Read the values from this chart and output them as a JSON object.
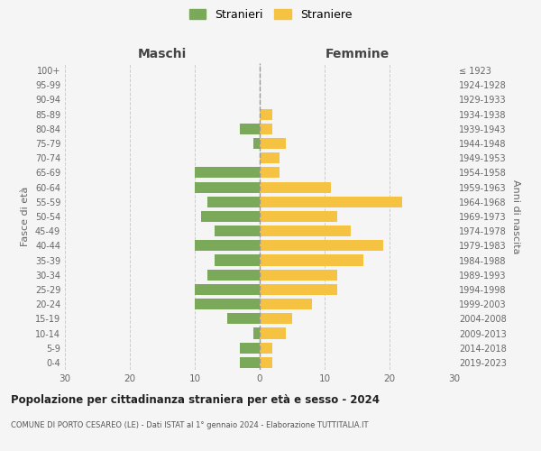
{
  "age_groups": [
    "0-4",
    "5-9",
    "10-14",
    "15-19",
    "20-24",
    "25-29",
    "30-34",
    "35-39",
    "40-44",
    "45-49",
    "50-54",
    "55-59",
    "60-64",
    "65-69",
    "70-74",
    "75-79",
    "80-84",
    "85-89",
    "90-94",
    "95-99",
    "100+"
  ],
  "birth_years": [
    "2019-2023",
    "2014-2018",
    "2009-2013",
    "2004-2008",
    "1999-2003",
    "1994-1998",
    "1989-1993",
    "1984-1988",
    "1979-1983",
    "1974-1978",
    "1969-1973",
    "1964-1968",
    "1959-1963",
    "1954-1958",
    "1949-1953",
    "1944-1948",
    "1939-1943",
    "1934-1938",
    "1929-1933",
    "1924-1928",
    "≤ 1923"
  ],
  "maschi": [
    3,
    3,
    1,
    5,
    10,
    10,
    8,
    7,
    10,
    7,
    9,
    8,
    10,
    10,
    0,
    1,
    3,
    0,
    0,
    0,
    0
  ],
  "femmine": [
    2,
    2,
    4,
    5,
    8,
    12,
    12,
    16,
    19,
    14,
    12,
    22,
    11,
    3,
    3,
    4,
    2,
    2,
    0,
    0,
    0
  ],
  "maschi_color": "#7aaa59",
  "femmine_color": "#f5c242",
  "background_color": "#f5f5f5",
  "grid_color": "#cccccc",
  "title": "Popolazione per cittadinanza straniera per età e sesso - 2024",
  "subtitle": "COMUNE DI PORTO CESAREO (LE) - Dati ISTAT al 1° gennaio 2024 - Elaborazione TUTTITALIA.IT",
  "xlabel_left": "Maschi",
  "xlabel_right": "Femmine",
  "ylabel_left": "Fasce di età",
  "ylabel_right": "Anni di nascita",
  "legend_stranieri": "Stranieri",
  "legend_straniere": "Straniere",
  "xlim": 30,
  "bar_height": 0.75
}
